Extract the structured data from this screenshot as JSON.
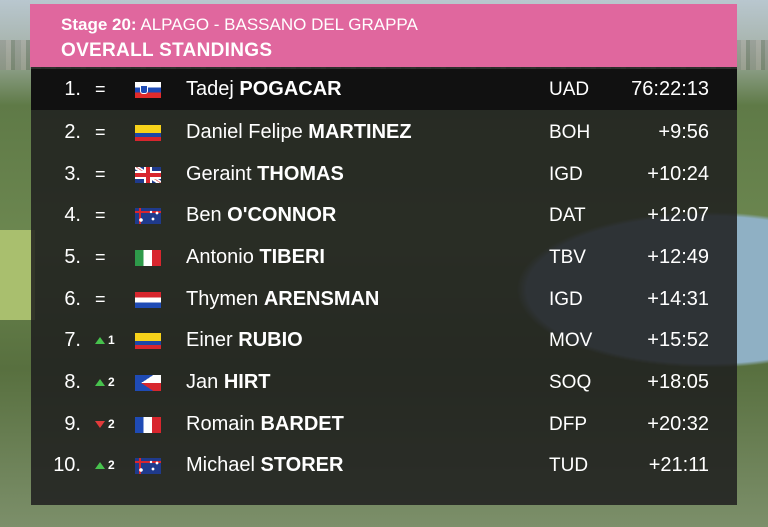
{
  "header": {
    "stage_label": "Stage 20:",
    "stage_route": "ALPAGO - BASSANO DEL GRAPPA",
    "title": "OVERALL STANDINGS",
    "color": "#e0679e"
  },
  "standings": [
    {
      "pos": "1.",
      "change": {
        "dir": "same",
        "text": "="
      },
      "flag": "slovenia-flag",
      "first": "Tadej",
      "last": "POGACAR",
      "team": "UAD",
      "time": "76:22:13"
    },
    {
      "pos": "2.",
      "change": {
        "dir": "same",
        "text": "="
      },
      "flag": "colombia-flag",
      "first": "Daniel Felipe",
      "last": "MARTINEZ",
      "team": "BOH",
      "time": "+9:56"
    },
    {
      "pos": "3.",
      "change": {
        "dir": "same",
        "text": "="
      },
      "flag": "great-britain-flag",
      "first": "Geraint",
      "last": "THOMAS",
      "team": "IGD",
      "time": "+10:24"
    },
    {
      "pos": "4.",
      "change": {
        "dir": "same",
        "text": "="
      },
      "flag": "australia-flag",
      "first": "Ben",
      "last": "O'CONNOR",
      "team": "DAT",
      "time": "+12:07"
    },
    {
      "pos": "5.",
      "change": {
        "dir": "same",
        "text": "="
      },
      "flag": "italy-flag",
      "first": "Antonio",
      "last": "TIBERI",
      "team": "TBV",
      "time": "+12:49"
    },
    {
      "pos": "6.",
      "change": {
        "dir": "same",
        "text": "="
      },
      "flag": "netherlands-flag",
      "first": "Thymen",
      "last": "ARENSMAN",
      "team": "IGD",
      "time": "+14:31"
    },
    {
      "pos": "7.",
      "change": {
        "dir": "up",
        "text": "1"
      },
      "flag": "colombia-flag",
      "first": "Einer",
      "last": "RUBIO",
      "team": "MOV",
      "time": "+15:52"
    },
    {
      "pos": "8.",
      "change": {
        "dir": "up",
        "text": "2"
      },
      "flag": "czechia-flag",
      "first": "Jan",
      "last": "HIRT",
      "team": "SOQ",
      "time": "+18:05"
    },
    {
      "pos": "9.",
      "change": {
        "dir": "down",
        "text": "2"
      },
      "flag": "france-flag",
      "first": "Romain",
      "last": "BARDET",
      "team": "DFP",
      "time": "+20:32"
    },
    {
      "pos": "10.",
      "change": {
        "dir": "up",
        "text": "2"
      },
      "flag": "australia-flag",
      "first": "Michael",
      "last": "STORER",
      "team": "TUD",
      "time": "+21:11"
    }
  ]
}
